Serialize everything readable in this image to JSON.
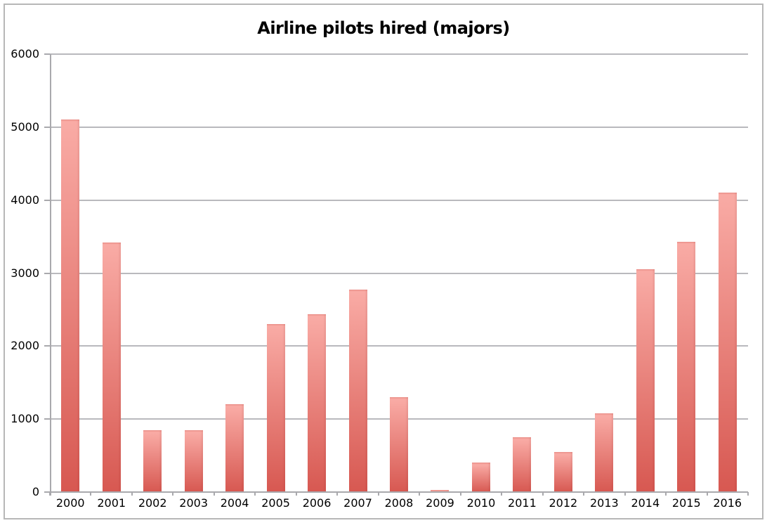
{
  "window": {
    "background": "#ffffff",
    "frame_border_color": "#b7b7b7"
  },
  "chart_data": {
    "type": "bar",
    "title": "Airline pilots hired (majors)",
    "categories": [
      "2000",
      "2001",
      "2002",
      "2003",
      "2004",
      "2005",
      "2006",
      "2007",
      "2008",
      "2009",
      "2010",
      "2011",
      "2012",
      "2013",
      "2014",
      "2015",
      "2016"
    ],
    "values": [
      5100,
      3420,
      850,
      850,
      1200,
      2300,
      2440,
      2770,
      1300,
      30,
      400,
      750,
      550,
      1080,
      3050,
      3430,
      4100
    ],
    "xlabel": "",
    "ylabel": "",
    "ylim": [
      0,
      6000
    ],
    "yticks": [
      0,
      1000,
      2000,
      3000,
      4000,
      5000,
      6000
    ],
    "grid": true,
    "legend": false,
    "colors": {
      "bar_gradient_top": "#f9aba5",
      "bar_gradient_bottom": "#d75851",
      "bar_top_edge": "#ee938c",
      "gridline": "#b9b9bd",
      "axis": "#a9a9ad",
      "label": "#000000",
      "title": "#000000"
    }
  }
}
